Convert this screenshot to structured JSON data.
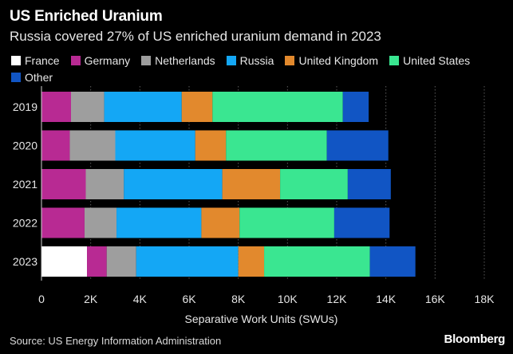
{
  "header": {
    "title": "US Enriched Uranium",
    "subtitle": "Russia covered 27% of US enriched uranium demand in 2023"
  },
  "footer": {
    "source": "Source: US Energy Information Administration",
    "brand": "Bloomberg"
  },
  "chart_data": {
    "type": "bar",
    "orientation": "horizontal",
    "stacked": true,
    "title": "US Enriched Uranium",
    "subtitle": "Russia covered 27% of US enriched uranium demand in 2023",
    "xlabel": "Separative Work Units (SWUs)",
    "ylabel": "",
    "xlim": [
      0,
      18000
    ],
    "xticks": [
      0,
      2000,
      4000,
      6000,
      8000,
      10000,
      12000,
      14000,
      16000,
      18000
    ],
    "xtick_labels": [
      "0",
      "2K",
      "4K",
      "6K",
      "8K",
      "10K",
      "12K",
      "14K",
      "16K",
      "18K"
    ],
    "grid": "vertical dotted",
    "legend_position": "top",
    "categories": [
      "2019",
      "2020",
      "2021",
      "2022",
      "2023"
    ],
    "series": [
      {
        "name": "France",
        "color": "#ffffff",
        "values": [
          0,
          0,
          0,
          0,
          1850
        ]
      },
      {
        "name": "Germany",
        "color": "#b82a93",
        "values": [
          1200,
          1150,
          1800,
          1750,
          800
        ]
      },
      {
        "name": "Netherlands",
        "color": "#9e9e9e",
        "values": [
          1350,
          1850,
          1550,
          1300,
          1200
        ]
      },
      {
        "name": "Russia",
        "color": "#14a7f5",
        "values": [
          3150,
          3250,
          4000,
          3450,
          4150
        ]
      },
      {
        "name": "United Kingdom",
        "color": "#e2892d",
        "values": [
          1250,
          1250,
          2350,
          1550,
          1050
        ]
      },
      {
        "name": "United States",
        "color": "#3ae691",
        "values": [
          5300,
          4100,
          2750,
          3850,
          4300
        ]
      },
      {
        "name": "Other",
        "color": "#1155c4",
        "values": [
          1050,
          2500,
          1750,
          2250,
          1850
        ]
      }
    ]
  }
}
